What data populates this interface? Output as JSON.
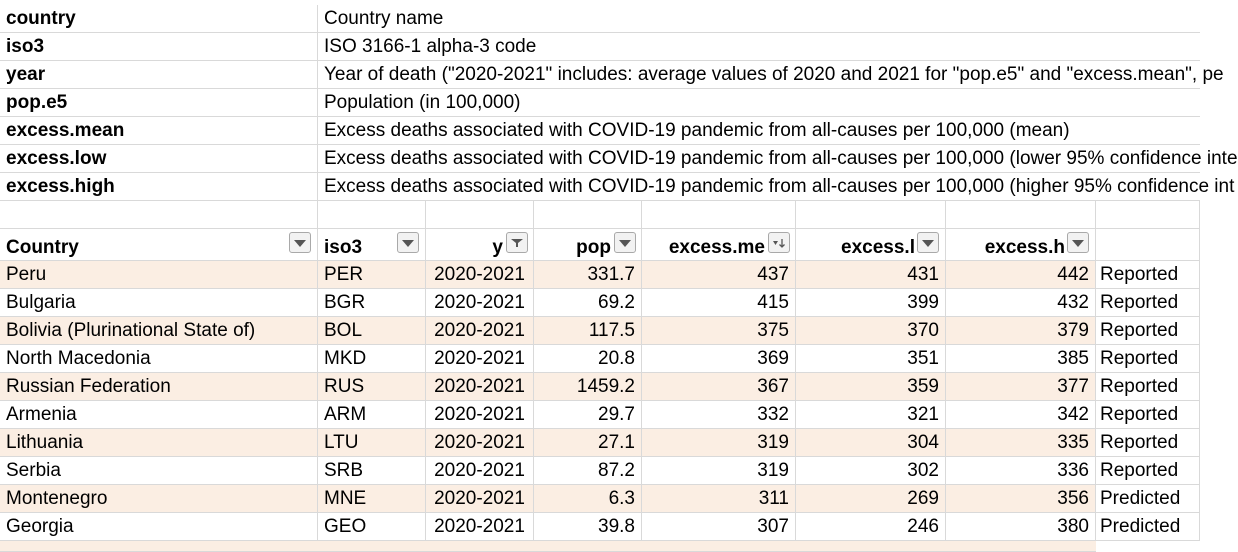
{
  "legend": [
    {
      "key": "country",
      "desc": "Country name"
    },
    {
      "key": "iso3",
      "desc": "ISO 3166-1 alpha-3 code"
    },
    {
      "key": "year",
      "desc": "Year of death (\"2020-2021\" includes: average values of 2020 and 2021 for \"pop.e5\" and \"excess.mean\", pe"
    },
    {
      "key": "pop.e5",
      "desc": "Population (in 100,000)"
    },
    {
      "key": "excess.mean",
      "desc": "Excess deaths associated with COVID-19 pandemic from all-causes per 100,000 (mean)"
    },
    {
      "key": "excess.low",
      "desc": "Excess deaths associated with COVID-19 pandemic from all-causes per 100,000 (lower 95% confidence inte"
    },
    {
      "key": "excess.high",
      "desc": "Excess deaths associated with COVID-19 pandemic from all-causes per 100,000 (higher 95% confidence int"
    }
  ],
  "table": {
    "headers": [
      {
        "label": "Country",
        "filter_icon": "dropdown-arrow-icon"
      },
      {
        "label": "iso3",
        "filter_icon": "dropdown-arrow-icon"
      },
      {
        "label": "y",
        "filter_icon": "filter-funnel-icon"
      },
      {
        "label": "pop",
        "filter_icon": "dropdown-arrow-icon"
      },
      {
        "label": "excess.me",
        "filter_icon": "sort-descending-icon"
      },
      {
        "label": "excess.l",
        "filter_icon": "dropdown-arrow-icon"
      },
      {
        "label": "excess.h",
        "filter_icon": "dropdown-arrow-icon"
      }
    ],
    "rows": [
      {
        "country": "Peru",
        "iso3": "PER",
        "year": "2020-2021",
        "pop": "331.7",
        "mean": "437",
        "low": "431",
        "high": "442",
        "status": "Reported"
      },
      {
        "country": "Bulgaria",
        "iso3": "BGR",
        "year": "2020-2021",
        "pop": "69.2",
        "mean": "415",
        "low": "399",
        "high": "432",
        "status": "Reported"
      },
      {
        "country": "Bolivia (Plurinational State of)",
        "iso3": "BOL",
        "year": "2020-2021",
        "pop": "117.5",
        "mean": "375",
        "low": "370",
        "high": "379",
        "status": "Reported"
      },
      {
        "country": "North Macedonia",
        "iso3": "MKD",
        "year": "2020-2021",
        "pop": "20.8",
        "mean": "369",
        "low": "351",
        "high": "385",
        "status": "Reported"
      },
      {
        "country": "Russian Federation",
        "iso3": "RUS",
        "year": "2020-2021",
        "pop": "1459.2",
        "mean": "367",
        "low": "359",
        "high": "377",
        "status": "Reported"
      },
      {
        "country": "Armenia",
        "iso3": "ARM",
        "year": "2020-2021",
        "pop": "29.7",
        "mean": "332",
        "low": "321",
        "high": "342",
        "status": "Reported"
      },
      {
        "country": "Lithuania",
        "iso3": "LTU",
        "year": "2020-2021",
        "pop": "27.1",
        "mean": "319",
        "low": "304",
        "high": "335",
        "status": "Reported"
      },
      {
        "country": "Serbia",
        "iso3": "SRB",
        "year": "2020-2021",
        "pop": "87.2",
        "mean": "319",
        "low": "302",
        "high": "336",
        "status": "Reported"
      },
      {
        "country": "Montenegro",
        "iso3": "MNE",
        "year": "2020-2021",
        "pop": "6.3",
        "mean": "311",
        "low": "269",
        "high": "356",
        "status": "Predicted"
      },
      {
        "country": "Georgia",
        "iso3": "GEO",
        "year": "2020-2021",
        "pop": "39.8",
        "mean": "307",
        "low": "246",
        "high": "380",
        "status": "Predicted"
      }
    ]
  },
  "colors": {
    "band_fill": "#fbeee3",
    "gridline": "#d9d9d9",
    "filter_button_bg": "#f2f2f2"
  }
}
